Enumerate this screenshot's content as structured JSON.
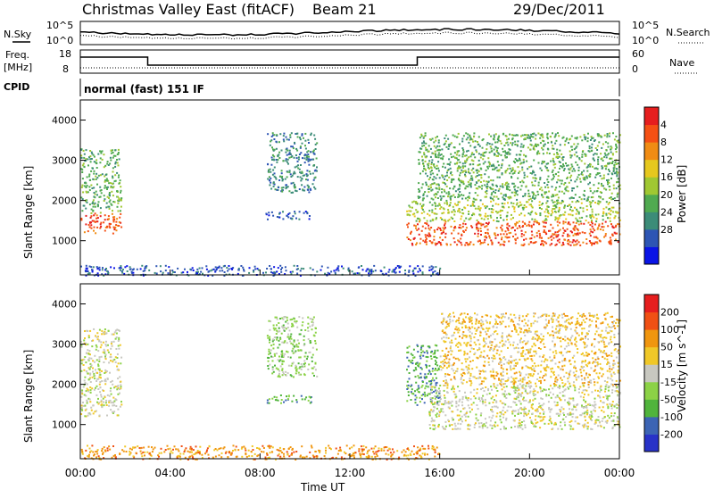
{
  "header": {
    "station": "Christmas Valley East (fitACF)",
    "beam": "Beam 21",
    "date": "29/Dec/2011"
  },
  "strip_panels": {
    "nsky_label": "N.Sky",
    "nsearch_label": "N.Search",
    "freq_label_1": "Freq.",
    "freq_label_2": "[MHz]",
    "nave_label": "Nave",
    "cpid_label": "CPID",
    "cpid_text": "normal (fast) 151 IF",
    "noise_left_ticks": [
      "10^5",
      "10^0"
    ],
    "noise_right_ticks": [
      "10^5",
      "10^0"
    ],
    "freq_left_ticks": [
      "18",
      "8"
    ],
    "nave_right_ticks": [
      "60",
      "0"
    ]
  },
  "colorbars": {
    "power": {
      "label": "Power [dB]",
      "ticks": [
        "4",
        "8",
        "12",
        "16",
        "20",
        "24",
        "28"
      ],
      "colors": [
        "#0a14e6",
        "#2d55b4",
        "#3c8c78",
        "#50aa50",
        "#a0c832",
        "#e6c81e",
        "#f08c14",
        "#f55014",
        "#e61e1e"
      ]
    },
    "velocity": {
      "label": "Velocity [m s^-1]",
      "ticks": [
        "200",
        "100",
        "50",
        "15",
        "-15",
        "-50",
        "-100",
        "-200"
      ],
      "colors": [
        "#2832c8",
        "#3c64b4",
        "#50b43c",
        "#8cd246",
        "#c8c8c0",
        "#f0c828",
        "#f0960f",
        "#f05014",
        "#e61e1e"
      ]
    }
  },
  "chart_data": [
    {
      "type": "heatmap",
      "name": "power",
      "ylabel": "Slant Range [km]",
      "ylim": [
        150,
        4500
      ],
      "yticks": [
        "1000",
        "2000",
        "3000",
        "4000"
      ],
      "xlim": [
        0,
        24
      ],
      "value_scale": "Power [dB]",
      "regions": [
        {
          "t": [
            0.0,
            1.8
          ],
          "r": [
            1200,
            1700
          ],
          "level": 7
        },
        {
          "t": [
            0.0,
            1.8
          ],
          "r": [
            1700,
            3300
          ],
          "level": 3
        },
        {
          "t": [
            8.3,
            10.5
          ],
          "r": [
            2200,
            3700
          ],
          "level": 2
        },
        {
          "t": [
            8.2,
            10.3
          ],
          "r": [
            1550,
            1750
          ],
          "level": 1
        },
        {
          "t": [
            14.5,
            24.0
          ],
          "r": [
            900,
            1500
          ],
          "level": 7
        },
        {
          "t": [
            14.5,
            24.0
          ],
          "r": [
            1500,
            2000
          ],
          "level": 4
        },
        {
          "t": [
            15.0,
            24.0
          ],
          "r": [
            2000,
            3700
          ],
          "level": 3
        },
        {
          "t": [
            0.0,
            16.0
          ],
          "r": [
            150,
            400
          ],
          "level": 1
        }
      ]
    },
    {
      "type": "heatmap",
      "name": "velocity",
      "ylabel": "Slant Range [km]",
      "ylim": [
        150,
        4500
      ],
      "yticks": [
        "1000",
        "2000",
        "3000",
        "4000"
      ],
      "xlim": [
        0,
        24
      ],
      "xlabel": "Time UT",
      "xticks": [
        "00:00",
        "04:00",
        "08:00",
        "12:00",
        "16:00",
        "20:00",
        "00:00"
      ],
      "value_scale": "Velocity [m s^-1]",
      "regions": [
        {
          "t": [
            0.0,
            1.8
          ],
          "r": [
            1200,
            3400
          ],
          "level": 4
        },
        {
          "t": [
            8.3,
            10.5
          ],
          "r": [
            2200,
            3700
          ],
          "level": 3
        },
        {
          "t": [
            8.2,
            10.3
          ],
          "r": [
            1550,
            1750
          ],
          "level": 2
        },
        {
          "t": [
            14.5,
            16.0
          ],
          "r": [
            1500,
            3000
          ],
          "level": 2
        },
        {
          "t": [
            15.5,
            24.0
          ],
          "r": [
            900,
            2000
          ],
          "level": 4
        },
        {
          "t": [
            16.0,
            24.0
          ],
          "r": [
            2000,
            3800
          ],
          "level": 5
        },
        {
          "t": [
            0.0,
            16.0
          ],
          "r": [
            150,
            500
          ],
          "level": 6
        }
      ]
    }
  ]
}
